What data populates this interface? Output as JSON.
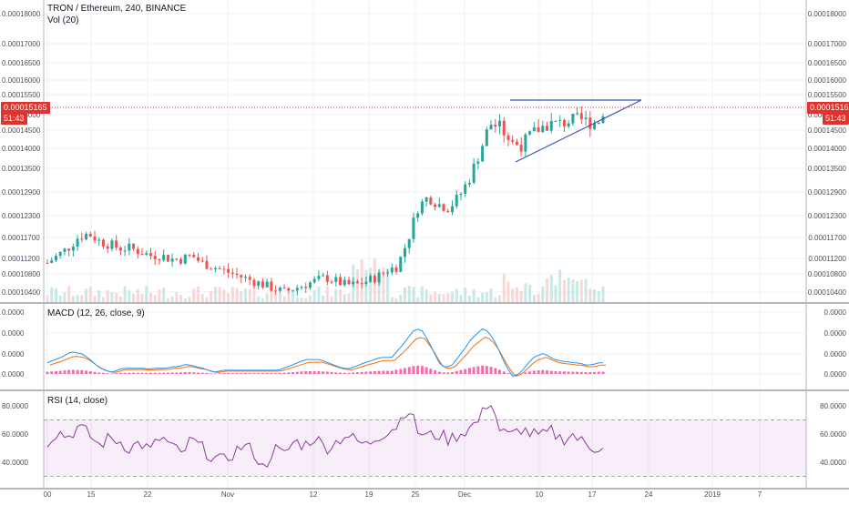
{
  "header": {
    "symbol_line": "TRON / Ethereum, 240, BINANCE",
    "volume_label": "Vol (20)"
  },
  "price_axis": {
    "ticks": [
      "0.00018000",
      "0.00017000",
      "0.00016500",
      "0.00016000",
      "0.00015500",
      "0.00015000",
      "0.00014500",
      "0.00014000",
      "0.00013500",
      "0.00012900",
      "0.00012300",
      "0.00011700",
      "0.00011200",
      "0.00010800",
      "0.00010400"
    ],
    "ticks_left": [
      "0.00018000",
      "0.00017000",
      "0.00016500",
      "0.00016000",
      "0.00015500",
      "0.00015000",
      "0.00014500",
      "0.00014000",
      "0.00013500",
      "0.00012900",
      "0.00012300",
      "0.00011700",
      "0.00011200",
      "0.00010800",
      "0.00010400"
    ]
  },
  "current_price": {
    "value": "0.00015165",
    "countdown": "51:43",
    "color": "#e0332e"
  },
  "macd": {
    "label": "MACD (12, 26, close, 9)",
    "ticks": [
      "0.0000",
      "0.0000",
      "0.0000",
      "0.0000",
      "0.0000"
    ],
    "macd_color": "#2196f3",
    "signal_color": "#ff6d00",
    "hist_color": "#f23c8f"
  },
  "rsi": {
    "label": "RSI (14, close)",
    "ticks": [
      "80.0000",
      "60.0000",
      "40.0000"
    ],
    "line_color": "#8e3a9c",
    "band_color": "#9c27b0"
  },
  "time_axis": {
    "labels": [
      "00",
      "15",
      "22",
      "Nov",
      "12",
      "19",
      "25",
      "Dec",
      "10",
      "17",
      "24",
      "2019",
      "7"
    ]
  },
  "colors": {
    "up": "#26a69a",
    "down": "#ef5350",
    "trendline": "#3f51b5",
    "grid": "#eef0f3"
  },
  "chart_data": {
    "type": "candlestick",
    "series": [
      {
        "name": "price",
        "values": [
          0.000112,
          0.000114,
          0.000116,
          0.000119,
          0.00012,
          0.000118,
          0.000117,
          0.000116,
          0.000116,
          0.000115,
          0.000114,
          0.000114,
          0.000113,
          0.000113,
          0.000114,
          0.000112,
          0.000111,
          0.00011,
          0.000109,
          0.000108,
          0.000107,
          0.000106,
          0.000105,
          0.000104,
          0.000105,
          0.000106,
          0.000107,
          0.000108,
          0.000107,
          0.000106,
          0.000106,
          0.000107,
          0.000108,
          0.00011,
          0.000111,
          0.000118,
          0.000127,
          0.00013,
          0.000128,
          0.000127,
          0.00013,
          0.000135,
          0.000142,
          0.00015,
          0.000149,
          0.000145,
          0.000144,
          0.000147,
          0.000149,
          0.00015,
          0.00015,
          0.000151,
          0.000151,
          0.00015,
          0.000152
        ]
      },
      {
        "name": "rsi",
        "values": [
          55,
          62,
          58,
          65,
          60,
          52,
          57,
          55,
          50,
          54,
          48,
          58,
          52,
          45,
          56,
          50,
          44,
          40,
          46,
          52,
          48,
          35,
          50,
          45,
          55,
          52,
          58,
          50,
          54,
          60,
          55,
          52,
          58,
          62,
          66,
          80,
          62,
          58,
          60,
          56,
          60,
          64,
          70,
          86,
          62,
          58,
          64,
          60,
          58,
          62,
          56,
          60,
          54,
          50,
          52
        ]
      }
    ],
    "ylim_price": [
      0.0001,
      0.00018
    ],
    "ylim_rsi": [
      25,
      90
    ],
    "rsi_band": [
      30,
      70
    ]
  }
}
